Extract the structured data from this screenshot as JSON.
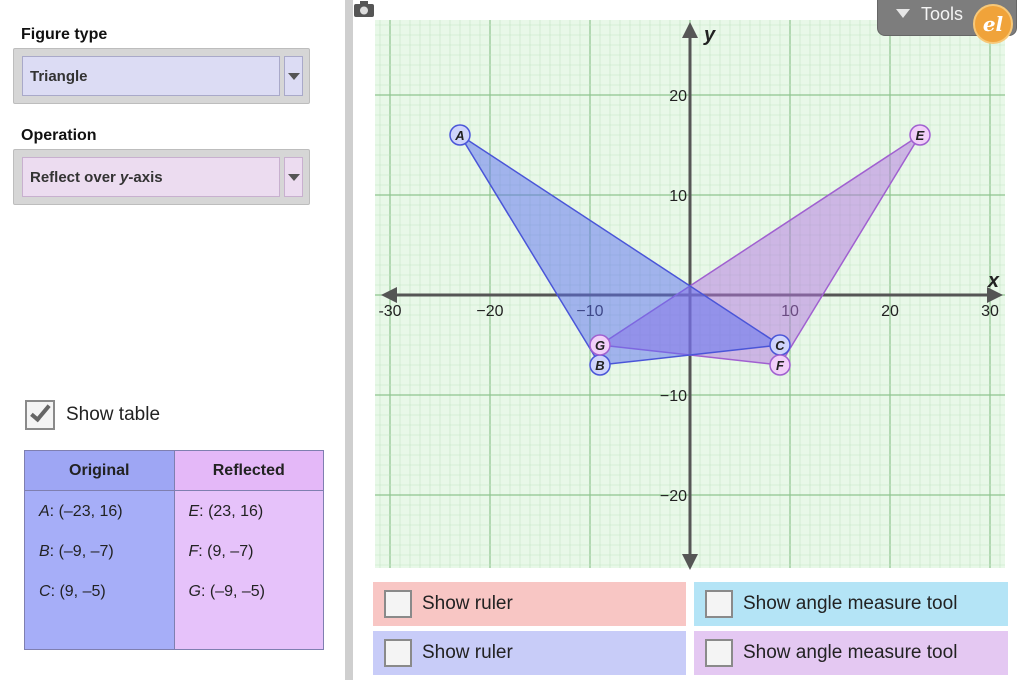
{
  "left_panel": {
    "figure_type_label": "Figure type",
    "figure_type_value": "Triangle",
    "operation_label": "Operation",
    "operation_value_prefix": "Reflect over ",
    "operation_value_var": "y",
    "operation_value_suffix": "-axis",
    "show_table_label": "Show table",
    "show_table_checked": true
  },
  "table": {
    "original_header": "Original",
    "reflected_header": "Reflected",
    "original_rows": [
      {
        "name": "A",
        "coords": ": (–23, 16)"
      },
      {
        "name": "B",
        "coords": ": (–9, –7)"
      },
      {
        "name": "C",
        "coords": ": (9, –5)"
      }
    ],
    "reflected_rows": [
      {
        "name": "E",
        "coords": ": (23, 16)"
      },
      {
        "name": "F",
        "coords": ": (9, –7)"
      },
      {
        "name": "G",
        "coords": ": (–9, –5)"
      }
    ]
  },
  "graph": {
    "x_axis_label": "x",
    "y_axis_label": "y",
    "x_ticks": [
      {
        "value": -30,
        "label": "-30"
      },
      {
        "value": -20,
        "label": "−20"
      },
      {
        "value": -10,
        "label": "−10"
      },
      {
        "value": 10,
        "label": "10"
      },
      {
        "value": 20,
        "label": "20"
      },
      {
        "value": 30,
        "label": "30"
      }
    ],
    "y_ticks": [
      {
        "value": 20,
        "label": "20"
      },
      {
        "value": 10,
        "label": "10"
      },
      {
        "value": -10,
        "label": "−10"
      },
      {
        "value": -20,
        "label": "−20"
      }
    ],
    "original_points": [
      {
        "name": "A",
        "x": -23,
        "y": 16
      },
      {
        "name": "B",
        "x": -9,
        "y": -7
      },
      {
        "name": "C",
        "x": 9,
        "y": -5
      }
    ],
    "reflected_points": [
      {
        "name": "E",
        "x": 23,
        "y": 16
      },
      {
        "name": "F",
        "x": 9,
        "y": -7
      },
      {
        "name": "G",
        "x": -9,
        "y": -5
      }
    ],
    "colors": {
      "grid_bg": "#e8f8e8",
      "grid_minor": "#c4e6c4",
      "grid_major": "#8fc48f",
      "original_fill": "#5a6ef0",
      "original_stroke": "#4a55d8",
      "reflected_fill": "#b273e0",
      "reflected_stroke": "#a060d0"
    }
  },
  "tools": {
    "label": "Tools",
    "logo_text": "el"
  },
  "toggles": [
    {
      "id": "ruler-red",
      "label": "Show ruler"
    },
    {
      "id": "angle-cyan",
      "label": "Show angle measure tool"
    },
    {
      "id": "ruler-blue",
      "label": "Show ruler"
    },
    {
      "id": "angle-purple",
      "label": "Show angle measure tool"
    }
  ]
}
